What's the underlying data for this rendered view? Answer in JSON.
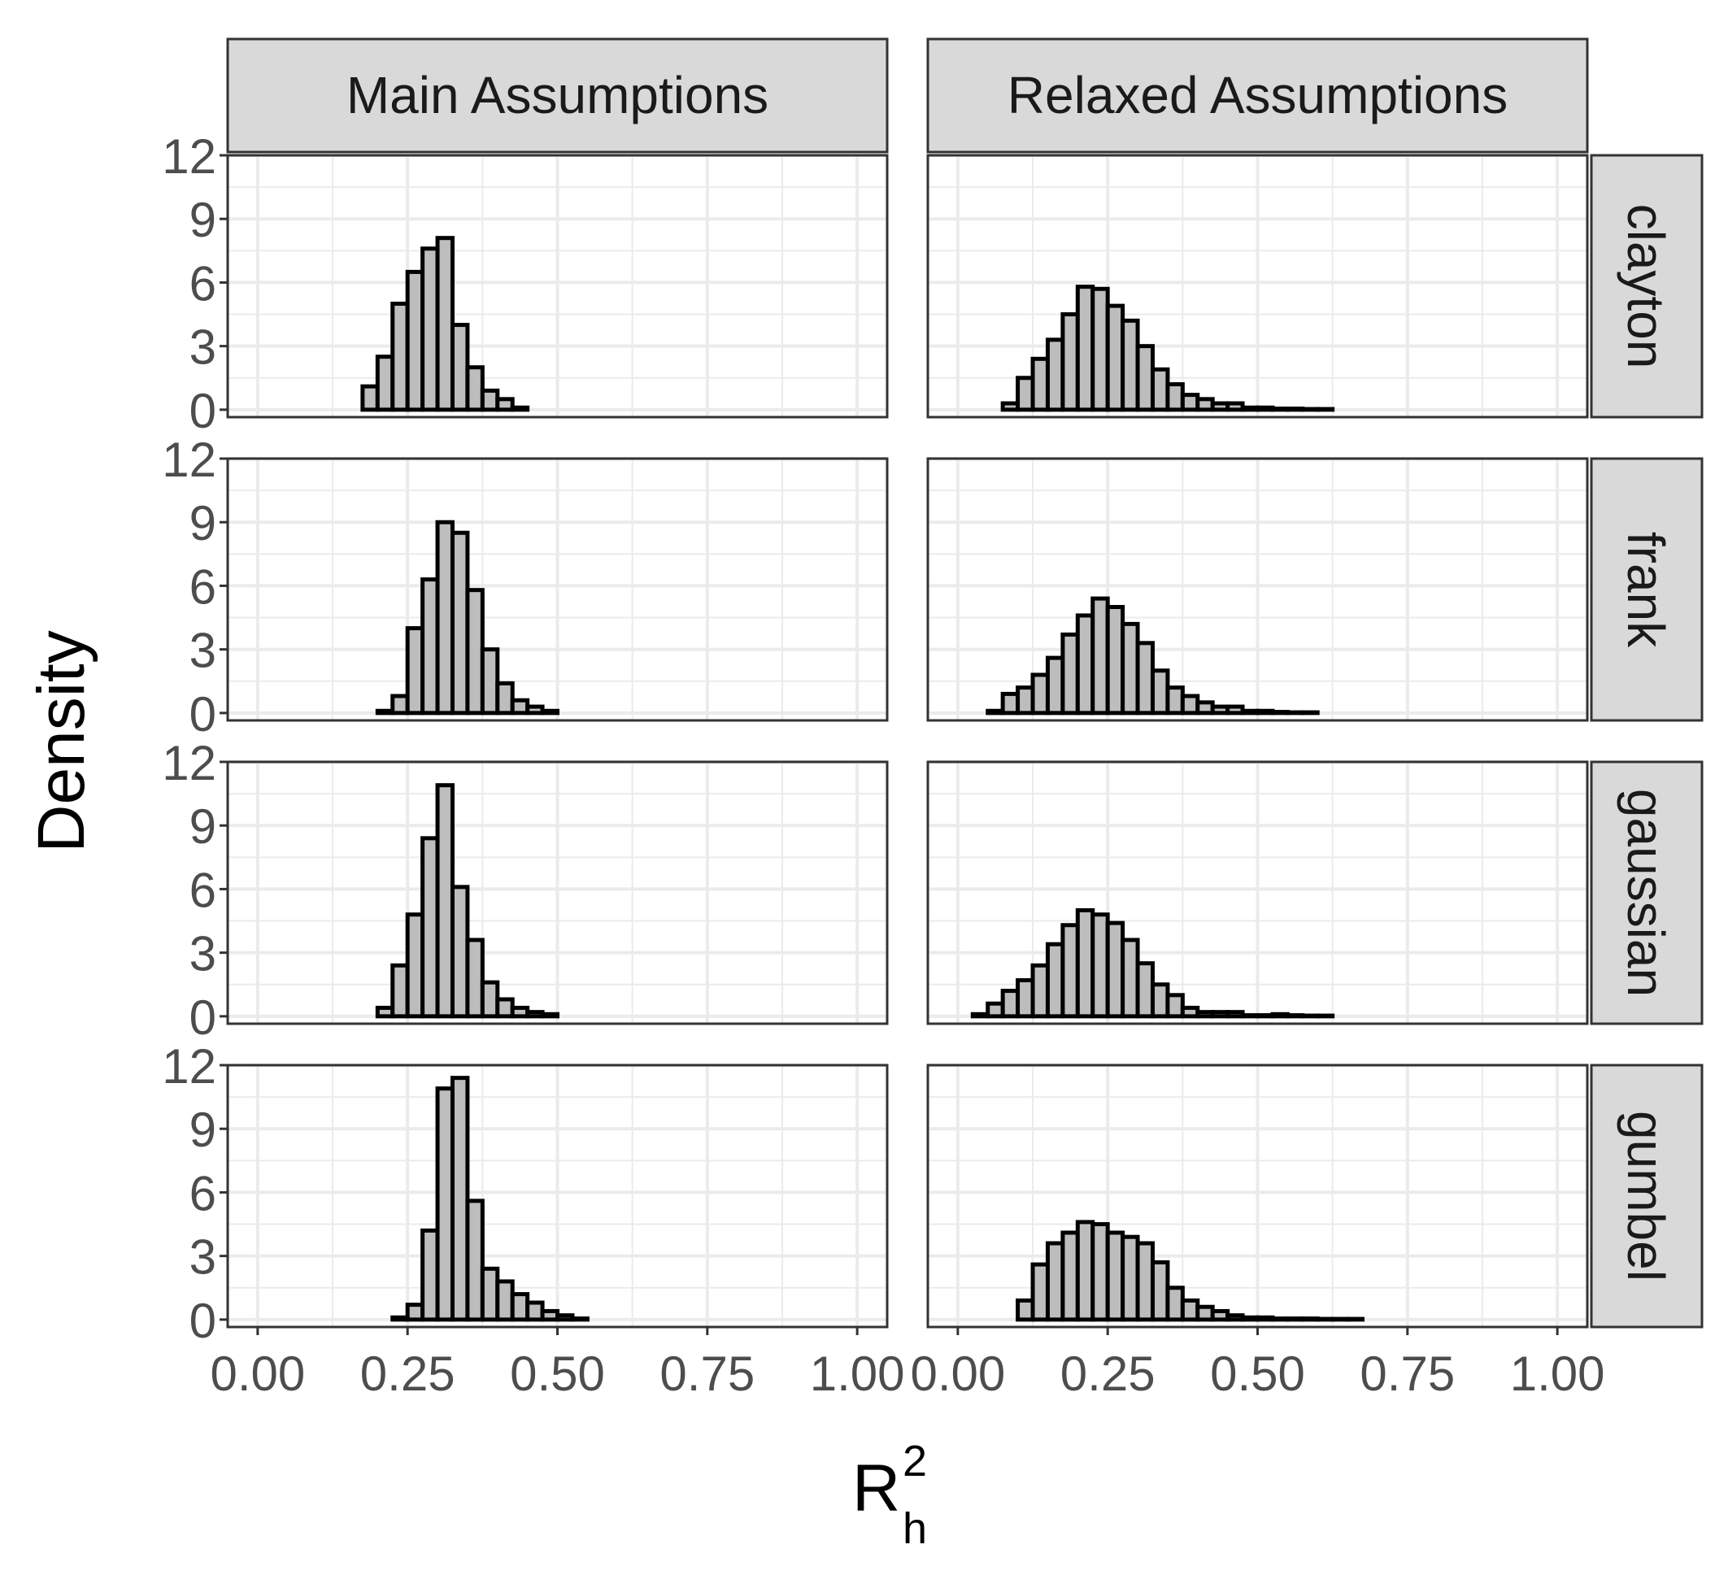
{
  "chart_data": {
    "type": "bar",
    "subtype": "faceted-histogram",
    "ylabel": "Density",
    "xlabel": {
      "base": "R",
      "subscript": "h",
      "superscript": "2"
    },
    "column_facets": [
      "Main Assumptions",
      "Relaxed Assumptions"
    ],
    "row_facets": [
      "clayton",
      "frank",
      "gaussian",
      "gumbel"
    ],
    "xlim": [
      -0.05,
      1.05
    ],
    "ylim": [
      -0.35,
      12
    ],
    "x_ticks": [
      "0.00",
      "0.25",
      "0.50",
      "0.75",
      "1.00"
    ],
    "x_tick_values": [
      0,
      0.25,
      0.5,
      0.75,
      1.0
    ],
    "y_ticks": [
      "0",
      "3",
      "6",
      "9",
      "12"
    ],
    "y_tick_values": [
      0,
      3,
      6,
      9,
      12
    ],
    "bin_width": 0.025,
    "grid": true,
    "bar_fill": "#bdbdbd",
    "bar_stroke": "#000000",
    "strip_fill": "#d9d9d9",
    "panels": [
      {
        "row": "clayton",
        "column": "Main Assumptions",
        "x_start": 0.175,
        "values": [
          1.1,
          2.5,
          5.0,
          6.5,
          7.6,
          8.1,
          4.0,
          2.0,
          0.9,
          0.5,
          0.1
        ]
      },
      {
        "row": "clayton",
        "column": "Relaxed Assumptions",
        "x_start": 0.075,
        "values": [
          0.3,
          1.5,
          2.4,
          3.3,
          4.5,
          5.8,
          5.7,
          4.9,
          4.2,
          3.0,
          1.9,
          1.2,
          0.7,
          0.5,
          0.3,
          0.3,
          0.1,
          0.1,
          0.05,
          0.05,
          0.02,
          0.02
        ]
      },
      {
        "row": "frank",
        "column": "Main Assumptions",
        "x_start": 0.2,
        "values": [
          0.1,
          0.8,
          4.0,
          6.3,
          9.0,
          8.5,
          5.8,
          3.0,
          1.4,
          0.6,
          0.3,
          0.1
        ]
      },
      {
        "row": "frank",
        "column": "Relaxed Assumptions",
        "x_start": 0.05,
        "values": [
          0.1,
          0.9,
          1.2,
          1.8,
          2.6,
          3.7,
          4.6,
          5.4,
          5.0,
          4.2,
          3.3,
          2.0,
          1.2,
          0.8,
          0.5,
          0.3,
          0.3,
          0.1,
          0.1,
          0.05,
          0.02,
          0.02
        ]
      },
      {
        "row": "gaussian",
        "column": "Main Assumptions",
        "x_start": 0.2,
        "values": [
          0.4,
          2.4,
          4.8,
          8.4,
          10.9,
          6.1,
          3.6,
          1.6,
          0.8,
          0.4,
          0.2,
          0.1
        ]
      },
      {
        "row": "gaussian",
        "column": "Relaxed Assumptions",
        "x_start": 0.025,
        "values": [
          0.1,
          0.6,
          1.2,
          1.7,
          2.4,
          3.4,
          4.3,
          5.0,
          4.8,
          4.4,
          3.6,
          2.5,
          1.5,
          1.0,
          0.4,
          0.2,
          0.2,
          0.2,
          0.05,
          0.05,
          0.1,
          0.05,
          0.02,
          0.02
        ]
      },
      {
        "row": "gumbel",
        "column": "Main Assumptions",
        "x_start": 0.225,
        "values": [
          0.1,
          0.7,
          4.2,
          10.9,
          11.4,
          5.6,
          2.4,
          1.8,
          1.2,
          0.8,
          0.4,
          0.2,
          0.05
        ]
      },
      {
        "row": "gumbel",
        "column": "Relaxed Assumptions",
        "x_start": 0.1,
        "values": [
          0.9,
          2.6,
          3.6,
          4.1,
          4.6,
          4.5,
          4.1,
          3.9,
          3.6,
          2.7,
          1.5,
          0.9,
          0.6,
          0.4,
          0.2,
          0.1,
          0.1,
          0.05,
          0.05,
          0.05,
          0.02,
          0.02,
          0.02
        ]
      }
    ]
  }
}
